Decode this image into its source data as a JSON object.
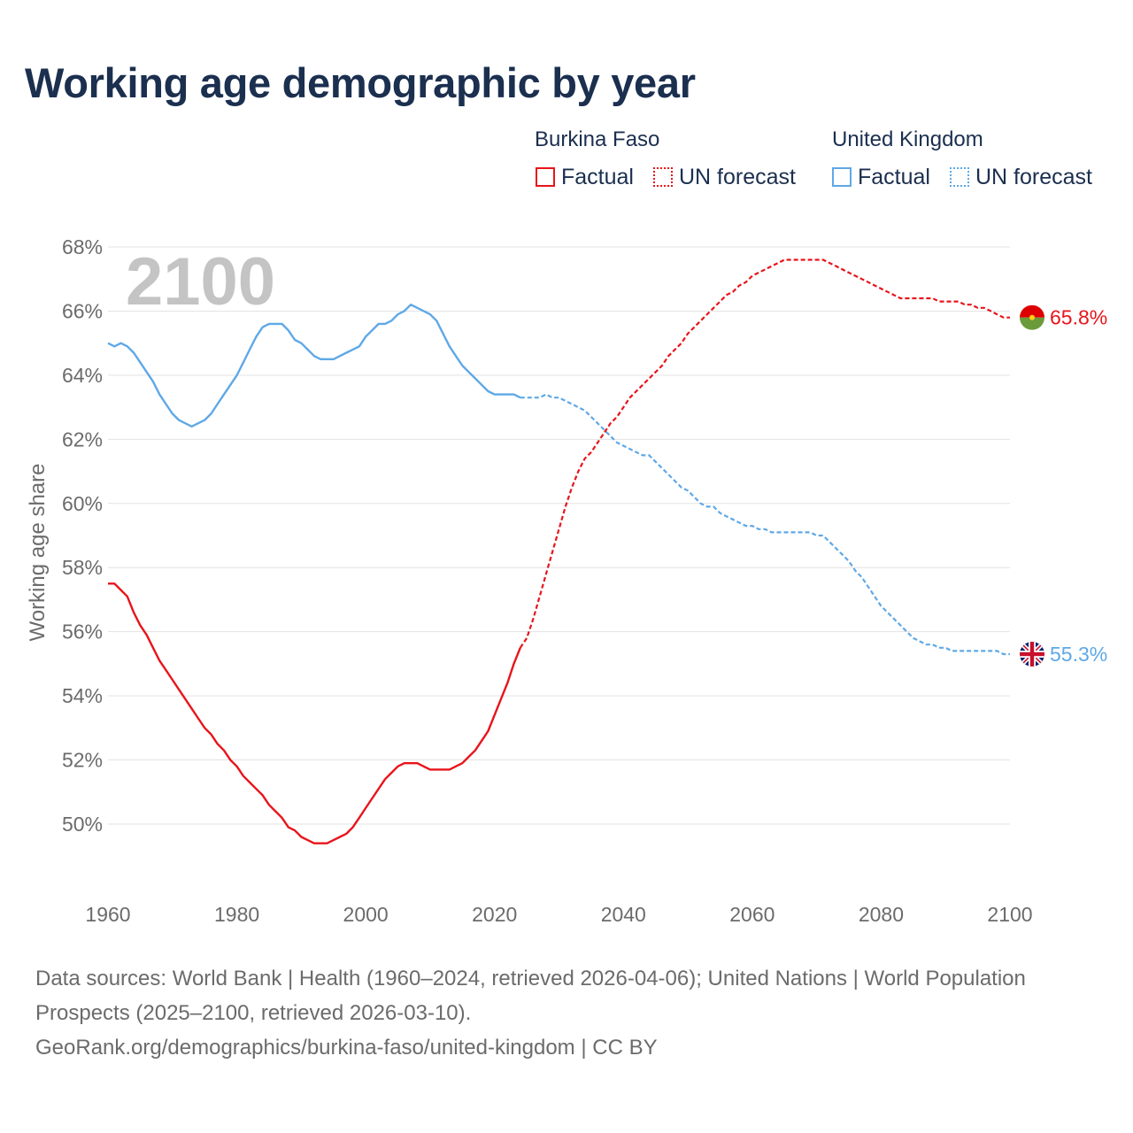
{
  "title": "Working age demographic by year",
  "legend": {
    "groups": [
      {
        "name": "Burkina Faso",
        "color": "#e8141b",
        "items": [
          {
            "label": "Factual",
            "style": "solid"
          },
          {
            "label": "UN forecast",
            "style": "dotted"
          }
        ]
      },
      {
        "name": "United Kingdom",
        "color": "#5fa8e6",
        "items": [
          {
            "label": "Factual",
            "style": "solid"
          },
          {
            "label": "UN forecast",
            "style": "dotted"
          }
        ]
      }
    ]
  },
  "footer": {
    "line1": "Data sources: World Bank | Health (1960–2024, retrieved 2026-04-06); United Nations | World Population Prospects (2025–2100, retrieved 2026-03-10).",
    "line2": "GeoRank.org/demographics/burkina-faso/united-kingdom | CC BY"
  },
  "chart_data": {
    "type": "line",
    "title": "Working age demographic by year",
    "xlabel": "",
    "ylabel": "Working age share",
    "year_watermark": "2100",
    "xlim": [
      1960,
      2103
    ],
    "ylim": [
      48,
      68
    ],
    "x_ticks": [
      1960,
      1980,
      2000,
      2020,
      2040,
      2060,
      2080,
      2100
    ],
    "y_ticks": [
      50,
      52,
      54,
      56,
      58,
      60,
      62,
      64,
      66,
      68
    ],
    "y_tick_suffix": "%",
    "grid": true,
    "factual_end_year": 2024,
    "series": [
      {
        "name": "Burkina Faso",
        "color": "#e8141b",
        "end_label": "65.8%",
        "flag": "burkina-faso",
        "points": [
          [
            1960,
            57.5
          ],
          [
            1961,
            57.5
          ],
          [
            1962,
            57.3
          ],
          [
            1963,
            57.1
          ],
          [
            1964,
            56.6
          ],
          [
            1965,
            56.2
          ],
          [
            1966,
            55.9
          ],
          [
            1967,
            55.5
          ],
          [
            1968,
            55.1
          ],
          [
            1969,
            54.8
          ],
          [
            1970,
            54.5
          ],
          [
            1971,
            54.2
          ],
          [
            1972,
            53.9
          ],
          [
            1973,
            53.6
          ],
          [
            1974,
            53.3
          ],
          [
            1975,
            53.0
          ],
          [
            1976,
            52.8
          ],
          [
            1977,
            52.5
          ],
          [
            1978,
            52.3
          ],
          [
            1979,
            52.0
          ],
          [
            1980,
            51.8
          ],
          [
            1981,
            51.5
          ],
          [
            1982,
            51.3
          ],
          [
            1983,
            51.1
          ],
          [
            1984,
            50.9
          ],
          [
            1985,
            50.6
          ],
          [
            1986,
            50.4
          ],
          [
            1987,
            50.2
          ],
          [
            1988,
            49.9
          ],
          [
            1989,
            49.8
          ],
          [
            1990,
            49.6
          ],
          [
            1991,
            49.5
          ],
          [
            1992,
            49.4
          ],
          [
            1993,
            49.4
          ],
          [
            1994,
            49.4
          ],
          [
            1995,
            49.5
          ],
          [
            1996,
            49.6
          ],
          [
            1997,
            49.7
          ],
          [
            1998,
            49.9
          ],
          [
            1999,
            50.2
          ],
          [
            2000,
            50.5
          ],
          [
            2001,
            50.8
          ],
          [
            2002,
            51.1
          ],
          [
            2003,
            51.4
          ],
          [
            2004,
            51.6
          ],
          [
            2005,
            51.8
          ],
          [
            2006,
            51.9
          ],
          [
            2007,
            51.9
          ],
          [
            2008,
            51.9
          ],
          [
            2009,
            51.8
          ],
          [
            2010,
            51.7
          ],
          [
            2011,
            51.7
          ],
          [
            2012,
            51.7
          ],
          [
            2013,
            51.7
          ],
          [
            2014,
            51.8
          ],
          [
            2015,
            51.9
          ],
          [
            2016,
            52.1
          ],
          [
            2017,
            52.3
          ],
          [
            2018,
            52.6
          ],
          [
            2019,
            52.9
          ],
          [
            2020,
            53.4
          ],
          [
            2021,
            53.9
          ],
          [
            2022,
            54.4
          ],
          [
            2023,
            55.0
          ],
          [
            2024,
            55.5
          ],
          [
            2025,
            55.8
          ],
          [
            2026,
            56.4
          ],
          [
            2027,
            57.1
          ],
          [
            2028,
            57.8
          ],
          [
            2029,
            58.5
          ],
          [
            2030,
            59.2
          ],
          [
            2031,
            59.9
          ],
          [
            2032,
            60.5
          ],
          [
            2033,
            61.0
          ],
          [
            2034,
            61.4
          ],
          [
            2035,
            61.6
          ],
          [
            2036,
            61.9
          ],
          [
            2037,
            62.2
          ],
          [
            2038,
            62.5
          ],
          [
            2039,
            62.7
          ],
          [
            2040,
            63.0
          ],
          [
            2041,
            63.3
          ],
          [
            2042,
            63.5
          ],
          [
            2043,
            63.7
          ],
          [
            2044,
            63.9
          ],
          [
            2045,
            64.1
          ],
          [
            2046,
            64.3
          ],
          [
            2047,
            64.6
          ],
          [
            2048,
            64.8
          ],
          [
            2049,
            65.0
          ],
          [
            2050,
            65.3
          ],
          [
            2051,
            65.5
          ],
          [
            2052,
            65.7
          ],
          [
            2053,
            65.9
          ],
          [
            2054,
            66.1
          ],
          [
            2055,
            66.3
          ],
          [
            2056,
            66.5
          ],
          [
            2057,
            66.6
          ],
          [
            2058,
            66.8
          ],
          [
            2059,
            66.9
          ],
          [
            2060,
            67.1
          ],
          [
            2061,
            67.2
          ],
          [
            2062,
            67.3
          ],
          [
            2063,
            67.4
          ],
          [
            2064,
            67.5
          ],
          [
            2065,
            67.6
          ],
          [
            2066,
            67.6
          ],
          [
            2067,
            67.6
          ],
          [
            2068,
            67.6
          ],
          [
            2069,
            67.6
          ],
          [
            2070,
            67.6
          ],
          [
            2071,
            67.6
          ],
          [
            2072,
            67.5
          ],
          [
            2073,
            67.4
          ],
          [
            2074,
            67.3
          ],
          [
            2075,
            67.2
          ],
          [
            2076,
            67.1
          ],
          [
            2077,
            67.0
          ],
          [
            2078,
            66.9
          ],
          [
            2079,
            66.8
          ],
          [
            2080,
            66.7
          ],
          [
            2081,
            66.6
          ],
          [
            2082,
            66.5
          ],
          [
            2083,
            66.4
          ],
          [
            2084,
            66.4
          ],
          [
            2085,
            66.4
          ],
          [
            2086,
            66.4
          ],
          [
            2087,
            66.4
          ],
          [
            2088,
            66.4
          ],
          [
            2089,
            66.3
          ],
          [
            2090,
            66.3
          ],
          [
            2091,
            66.3
          ],
          [
            2092,
            66.3
          ],
          [
            2093,
            66.2
          ],
          [
            2094,
            66.2
          ],
          [
            2095,
            66.1
          ],
          [
            2096,
            66.1
          ],
          [
            2097,
            66.0
          ],
          [
            2098,
            65.9
          ],
          [
            2099,
            65.8
          ],
          [
            2100,
            65.8
          ]
        ]
      },
      {
        "name": "United Kingdom",
        "color": "#5fa8e6",
        "end_label": "55.3%",
        "flag": "united-kingdom",
        "points": [
          [
            1960,
            65.0
          ],
          [
            1961,
            64.9
          ],
          [
            1962,
            65.0
          ],
          [
            1963,
            64.9
          ],
          [
            1964,
            64.7
          ],
          [
            1965,
            64.4
          ],
          [
            1966,
            64.1
          ],
          [
            1967,
            63.8
          ],
          [
            1968,
            63.4
          ],
          [
            1969,
            63.1
          ],
          [
            1970,
            62.8
          ],
          [
            1971,
            62.6
          ],
          [
            1972,
            62.5
          ],
          [
            1973,
            62.4
          ],
          [
            1974,
            62.5
          ],
          [
            1975,
            62.6
          ],
          [
            1976,
            62.8
          ],
          [
            1977,
            63.1
          ],
          [
            1978,
            63.4
          ],
          [
            1979,
            63.7
          ],
          [
            1980,
            64.0
          ],
          [
            1981,
            64.4
          ],
          [
            1982,
            64.8
          ],
          [
            1983,
            65.2
          ],
          [
            1984,
            65.5
          ],
          [
            1985,
            65.6
          ],
          [
            1986,
            65.6
          ],
          [
            1987,
            65.6
          ],
          [
            1988,
            65.4
          ],
          [
            1989,
            65.1
          ],
          [
            1990,
            65.0
          ],
          [
            1991,
            64.8
          ],
          [
            1992,
            64.6
          ],
          [
            1993,
            64.5
          ],
          [
            1994,
            64.5
          ],
          [
            1995,
            64.5
          ],
          [
            1996,
            64.6
          ],
          [
            1997,
            64.7
          ],
          [
            1998,
            64.8
          ],
          [
            1999,
            64.9
          ],
          [
            2000,
            65.2
          ],
          [
            2001,
            65.4
          ],
          [
            2002,
            65.6
          ],
          [
            2003,
            65.6
          ],
          [
            2004,
            65.7
          ],
          [
            2005,
            65.9
          ],
          [
            2006,
            66.0
          ],
          [
            2007,
            66.2
          ],
          [
            2008,
            66.1
          ],
          [
            2009,
            66.0
          ],
          [
            2010,
            65.9
          ],
          [
            2011,
            65.7
          ],
          [
            2012,
            65.3
          ],
          [
            2013,
            64.9
          ],
          [
            2014,
            64.6
          ],
          [
            2015,
            64.3
          ],
          [
            2016,
            64.1
          ],
          [
            2017,
            63.9
          ],
          [
            2018,
            63.7
          ],
          [
            2019,
            63.5
          ],
          [
            2020,
            63.4
          ],
          [
            2021,
            63.4
          ],
          [
            2022,
            63.4
          ],
          [
            2023,
            63.4
          ],
          [
            2024,
            63.3
          ],
          [
            2025,
            63.3
          ],
          [
            2026,
            63.3
          ],
          [
            2027,
            63.3
          ],
          [
            2028,
            63.4
          ],
          [
            2029,
            63.3
          ],
          [
            2030,
            63.3
          ],
          [
            2031,
            63.2
          ],
          [
            2032,
            63.1
          ],
          [
            2033,
            63.0
          ],
          [
            2034,
            62.9
          ],
          [
            2035,
            62.7
          ],
          [
            2036,
            62.5
          ],
          [
            2037,
            62.3
          ],
          [
            2038,
            62.1
          ],
          [
            2039,
            61.9
          ],
          [
            2040,
            61.8
          ],
          [
            2041,
            61.7
          ],
          [
            2042,
            61.6
          ],
          [
            2043,
            61.5
          ],
          [
            2044,
            61.5
          ],
          [
            2045,
            61.3
          ],
          [
            2046,
            61.1
          ],
          [
            2047,
            60.9
          ],
          [
            2048,
            60.7
          ],
          [
            2049,
            60.5
          ],
          [
            2050,
            60.4
          ],
          [
            2051,
            60.2
          ],
          [
            2052,
            60.0
          ],
          [
            2053,
            59.9
          ],
          [
            2054,
            59.9
          ],
          [
            2055,
            59.7
          ],
          [
            2056,
            59.6
          ],
          [
            2057,
            59.5
          ],
          [
            2058,
            59.4
          ],
          [
            2059,
            59.3
          ],
          [
            2060,
            59.3
          ],
          [
            2061,
            59.2
          ],
          [
            2062,
            59.2
          ],
          [
            2063,
            59.1
          ],
          [
            2064,
            59.1
          ],
          [
            2065,
            59.1
          ],
          [
            2066,
            59.1
          ],
          [
            2067,
            59.1
          ],
          [
            2068,
            59.1
          ],
          [
            2069,
            59.1
          ],
          [
            2070,
            59.0
          ],
          [
            2071,
            59.0
          ],
          [
            2072,
            58.8
          ],
          [
            2073,
            58.6
          ],
          [
            2074,
            58.4
          ],
          [
            2075,
            58.2
          ],
          [
            2076,
            57.9
          ],
          [
            2077,
            57.7
          ],
          [
            2078,
            57.4
          ],
          [
            2079,
            57.1
          ],
          [
            2080,
            56.8
          ],
          [
            2081,
            56.6
          ],
          [
            2082,
            56.4
          ],
          [
            2083,
            56.2
          ],
          [
            2084,
            56.0
          ],
          [
            2085,
            55.8
          ],
          [
            2086,
            55.7
          ],
          [
            2087,
            55.6
          ],
          [
            2088,
            55.6
          ],
          [
            2089,
            55.5
          ],
          [
            2090,
            55.5
          ],
          [
            2091,
            55.4
          ],
          [
            2092,
            55.4
          ],
          [
            2093,
            55.4
          ],
          [
            2094,
            55.4
          ],
          [
            2095,
            55.4
          ],
          [
            2096,
            55.4
          ],
          [
            2097,
            55.4
          ],
          [
            2098,
            55.4
          ],
          [
            2099,
            55.3
          ],
          [
            2100,
            55.3
          ]
        ]
      }
    ]
  }
}
